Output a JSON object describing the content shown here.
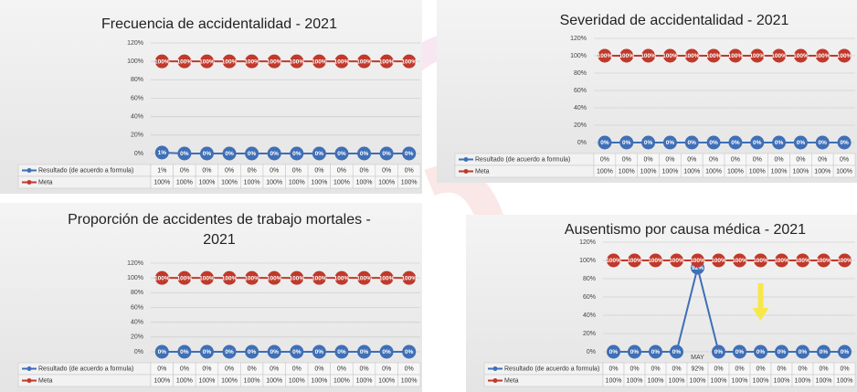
{
  "chart_data": [
    {
      "type": "line",
      "title": "Frecuencia de accidentalidad -  2021",
      "categories": [
        null,
        null,
        null,
        null,
        null,
        null,
        null,
        null,
        null,
        null,
        null,
        null
      ],
      "ylim": [
        0,
        120
      ],
      "yticks": [
        {
          "value": 0,
          "label": "0%"
        },
        {
          "value": 20,
          "label": "20%"
        },
        {
          "value": 40,
          "label": "40%"
        },
        {
          "value": 60,
          "label": "60%"
        },
        {
          "value": 80,
          "label": "80%"
        },
        {
          "value": 100,
          "label": "100%"
        },
        {
          "value": 120,
          "label": "120%"
        }
      ],
      "grid": true,
      "series": [
        {
          "name": "Resultado (de acuerdo a formula)",
          "color": "#3f6fb6",
          "values": [
            1,
            0,
            0,
            0,
            0,
            0,
            0,
            0,
            0,
            0,
            0,
            0
          ],
          "value_labels": [
            "1%",
            "0%",
            "0%",
            "0%",
            "0%",
            "0%",
            "0%",
            "0%",
            "0%",
            "0%",
            "0%",
            "0%"
          ]
        },
        {
          "name": "Meta",
          "color": "#c0392b",
          "values": [
            100,
            100,
            100,
            100,
            100,
            100,
            100,
            100,
            100,
            100,
            100,
            100
          ],
          "value_labels": [
            "100%",
            "100%",
            "100%",
            "100%",
            "100%",
            "100%",
            "100%",
            "100%",
            "100%",
            "100%",
            "100%",
            "100%"
          ]
        }
      ]
    },
    {
      "type": "line",
      "title": "Severidad de accidentalidad -  2021",
      "categories": [
        null,
        null,
        null,
        null,
        null,
        null,
        null,
        null,
        null,
        null,
        null,
        null
      ],
      "ylim": [
        0,
        120
      ],
      "yticks": [
        {
          "value": 0,
          "label": "0%"
        },
        {
          "value": 20,
          "label": "20%"
        },
        {
          "value": 40,
          "label": "40%"
        },
        {
          "value": 60,
          "label": "60%"
        },
        {
          "value": 80,
          "label": "80%"
        },
        {
          "value": 100,
          "label": "100%"
        },
        {
          "value": 120,
          "label": "120%"
        }
      ],
      "grid": true,
      "series": [
        {
          "name": "Resultado (de acuerdo a formula)",
          "color": "#3f6fb6",
          "values": [
            0,
            0,
            0,
            0,
            0,
            0,
            0,
            0,
            0,
            0,
            0,
            0
          ],
          "value_labels": [
            "0%",
            "0%",
            "0%",
            "0%",
            "0%",
            "0%",
            "0%",
            "0%",
            "0%",
            "0%",
            "0%",
            "0%"
          ]
        },
        {
          "name": "Meta",
          "color": "#c0392b",
          "values": [
            100,
            100,
            100,
            100,
            100,
            100,
            100,
            100,
            100,
            100,
            100,
            100
          ],
          "value_labels": [
            "100%",
            "100%",
            "100%",
            "100%",
            "100%",
            "100%",
            "100%",
            "100%",
            "100%",
            "100%",
            "100%",
            "100%"
          ]
        }
      ]
    },
    {
      "type": "line",
      "title": "Proporción de accidentes de trabajo mortales   -   2021",
      "categories": [
        null,
        null,
        null,
        null,
        null,
        null,
        null,
        null,
        null,
        null,
        null,
        null
      ],
      "ylim": [
        0,
        120
      ],
      "yticks": [
        {
          "value": 0,
          "label": "0%"
        },
        {
          "value": 20,
          "label": "20%"
        },
        {
          "value": 40,
          "label": "40%"
        },
        {
          "value": 60,
          "label": "60%"
        },
        {
          "value": 80,
          "label": "80%"
        },
        {
          "value": 100,
          "label": "100%"
        },
        {
          "value": 120,
          "label": "120%"
        }
      ],
      "grid": true,
      "series": [
        {
          "name": "Resultado (de acuerdo a formula)",
          "color": "#3f6fb6",
          "values": [
            0,
            0,
            0,
            0,
            0,
            0,
            0,
            0,
            0,
            0,
            0,
            0
          ],
          "value_labels": [
            "0%",
            "0%",
            "0%",
            "0%",
            "0%",
            "0%",
            "0%",
            "0%",
            "0%",
            "0%",
            "0%",
            "0%"
          ]
        },
        {
          "name": "Meta",
          "color": "#c0392b",
          "values": [
            100,
            100,
            100,
            100,
            100,
            100,
            100,
            100,
            100,
            100,
            100,
            100
          ],
          "value_labels": [
            "100%",
            "100%",
            "100%",
            "100%",
            "100%",
            "100%",
            "100%",
            "100%",
            "100%",
            "100%",
            "100%",
            "100%"
          ]
        }
      ]
    },
    {
      "type": "line",
      "title": "Ausentismo por causa médica -  2021",
      "categories": [
        null,
        null,
        null,
        null,
        "MAY",
        null,
        null,
        null,
        null,
        null,
        null,
        null
      ],
      "ylim": [
        0,
        120
      ],
      "yticks": [
        {
          "value": 0,
          "label": "0%"
        },
        {
          "value": 20,
          "label": "20%"
        },
        {
          "value": 40,
          "label": "40%"
        },
        {
          "value": 60,
          "label": "60%"
        },
        {
          "value": 80,
          "label": "80%"
        },
        {
          "value": 100,
          "label": "100%"
        },
        {
          "value": 120,
          "label": "120%"
        }
      ],
      "grid": true,
      "series": [
        {
          "name": "Resultado (de acuerdo a formula)",
          "color": "#3f6fb6",
          "values": [
            0,
            0,
            0,
            0,
            92,
            0,
            0,
            0,
            0,
            0,
            0,
            0
          ],
          "value_labels": [
            "0%",
            "0%",
            "0%",
            "0%",
            "92%",
            "0%",
            "0%",
            "0%",
            "0%",
            "0%",
            "0%",
            "0%"
          ]
        },
        {
          "name": "Meta",
          "color": "#c0392b",
          "values": [
            100,
            100,
            100,
            100,
            100,
            100,
            100,
            100,
            100,
            100,
            100,
            100
          ],
          "value_labels": [
            "100%",
            "100%",
            "100%",
            "100%",
            "100%",
            "100%",
            "100%",
            "100%",
            "100%",
            "100%",
            "100%",
            "100%"
          ]
        }
      ]
    }
  ]
}
